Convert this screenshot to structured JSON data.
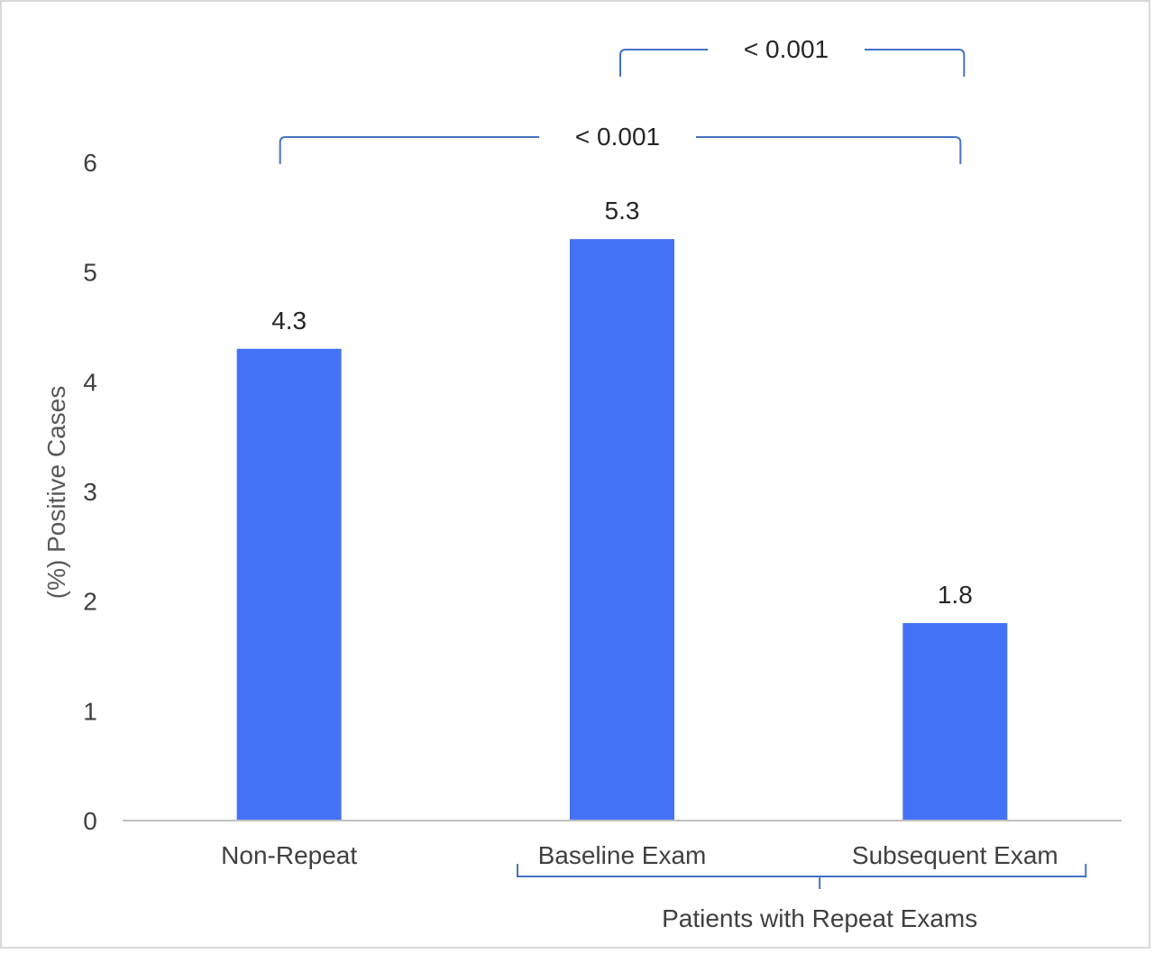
{
  "chart_data": {
    "type": "bar",
    "categories": [
      "Non-Repeat",
      "Baseline Exam",
      "Subsequent Exam"
    ],
    "values": [
      4.3,
      5.3,
      1.8
    ],
    "data_labels": [
      "4.3",
      "5.3",
      "1.8"
    ],
    "title": "",
    "xlabel": "",
    "ylabel": "(%) Positive Cases",
    "ylim": [
      0,
      6
    ],
    "yticks": [
      0,
      1,
      2,
      3,
      4,
      5,
      6
    ],
    "ytick_labels": [
      "0",
      "1",
      "2",
      "3",
      "4",
      "5",
      "6"
    ],
    "grid": false,
    "legend": "none",
    "bar_color": "#4472f7",
    "bracket_color": "#4472c4",
    "group_label": "Patients with Repeat Exams",
    "group_categories": [
      "Baseline Exam",
      "Subsequent Exam"
    ],
    "significance": [
      {
        "from": "Non-Repeat",
        "to": "Subsequent Exam",
        "label": "< 0.001"
      },
      {
        "from": "Baseline Exam",
        "to": "Subsequent Exam",
        "label": "< 0.001"
      }
    ]
  }
}
